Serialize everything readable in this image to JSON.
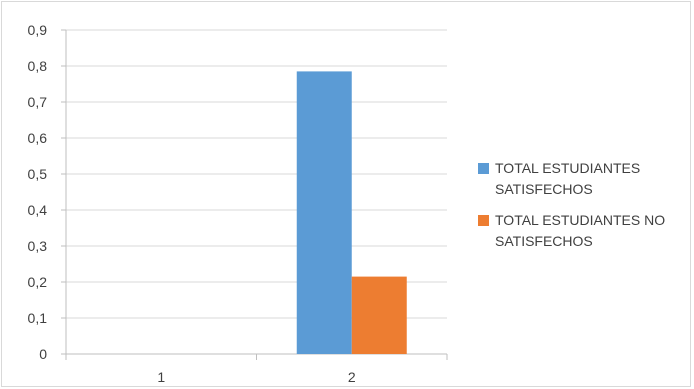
{
  "chart_data": {
    "type": "bar",
    "categories": [
      "1",
      "2"
    ],
    "series": [
      {
        "name": "TOTAL ESTUDIANTES SATISFECHOS",
        "values": [
          0,
          0.785
        ],
        "color": "#5b9bd5"
      },
      {
        "name": "TOTAL ESTUDIANTES NO SATISFECHOS",
        "values": [
          0,
          0.215
        ],
        "color": "#ed7d31"
      }
    ],
    "y_ticks": [
      "0",
      "0,1",
      "0,2",
      "0,3",
      "0,4",
      "0,5",
      "0,6",
      "0,7",
      "0,8",
      "0,9"
    ],
    "ylim": [
      0,
      0.9
    ],
    "grid": true,
    "legend_position": "right",
    "title": "",
    "xlabel": "",
    "ylabel": ""
  }
}
